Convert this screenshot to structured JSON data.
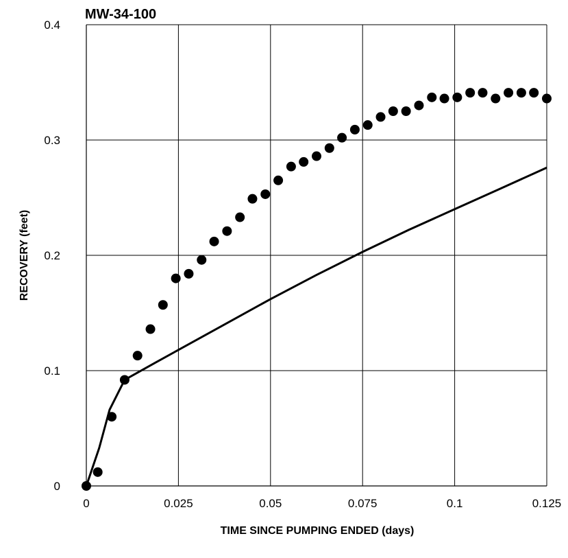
{
  "chart_data": {
    "type": "scatter",
    "title": "MW-34-100",
    "xlabel": "TIME SINCE PUMPING ENDED (days)",
    "ylabel": "RECOVERY (feet)",
    "xlim": [
      0,
      0.125
    ],
    "ylim": [
      0,
      0.4
    ],
    "x_ticks": [
      0,
      0.025,
      0.05,
      0.075,
      0.1,
      0.125
    ],
    "x_tick_labels": [
      "0",
      "0.025",
      "0.05",
      "0.075",
      "0.1",
      "0.125"
    ],
    "y_ticks": [
      0,
      0.1,
      0.2,
      0.3,
      0.4
    ],
    "y_tick_labels": [
      "0",
      "0.1",
      "0.2",
      "0.3",
      "0.4"
    ],
    "grid": true,
    "colors": {
      "points": "#000000",
      "line": "#000000",
      "grid": "#000000"
    },
    "series": [
      {
        "type": "scatter",
        "marker": "filled-circle",
        "x": [
          0,
          0.0031,
          0.0069,
          0.0104,
          0.0139,
          0.0174,
          0.0208,
          0.0243,
          0.0278,
          0.0313,
          0.0347,
          0.0382,
          0.0417,
          0.0451,
          0.0486,
          0.0521,
          0.0556,
          0.059,
          0.0625,
          0.066,
          0.0694,
          0.0729,
          0.0764,
          0.0799,
          0.0833,
          0.0868,
          0.0903,
          0.0938,
          0.0972,
          0.1007,
          0.1042,
          0.1076,
          0.1111,
          0.1146,
          0.1181,
          0.1215,
          0.125
        ],
        "y": [
          0,
          0.012,
          0.06,
          0.092,
          0.113,
          0.136,
          0.157,
          0.18,
          0.184,
          0.196,
          0.212,
          0.221,
          0.233,
          0.249,
          0.253,
          0.265,
          0.277,
          0.281,
          0.286,
          0.293,
          0.302,
          0.309,
          0.313,
          0.32,
          0.325,
          0.325,
          0.33,
          0.337,
          0.336,
          0.337,
          0.341,
          0.341,
          0.336,
          0.341,
          0.341,
          0.341,
          0.336
        ]
      },
      {
        "type": "line",
        "x": [
          0,
          0.0035,
          0.0063,
          0.0104,
          0.0188,
          0.025,
          0.0375,
          0.05,
          0.0625,
          0.075,
          0.0875,
          0.1,
          0.1125,
          0.125
        ],
        "y": [
          0,
          0.033,
          0.066,
          0.092,
          0.107,
          0.118,
          0.14,
          0.162,
          0.183,
          0.203,
          0.222,
          0.24,
          0.258,
          0.276
        ]
      }
    ]
  }
}
